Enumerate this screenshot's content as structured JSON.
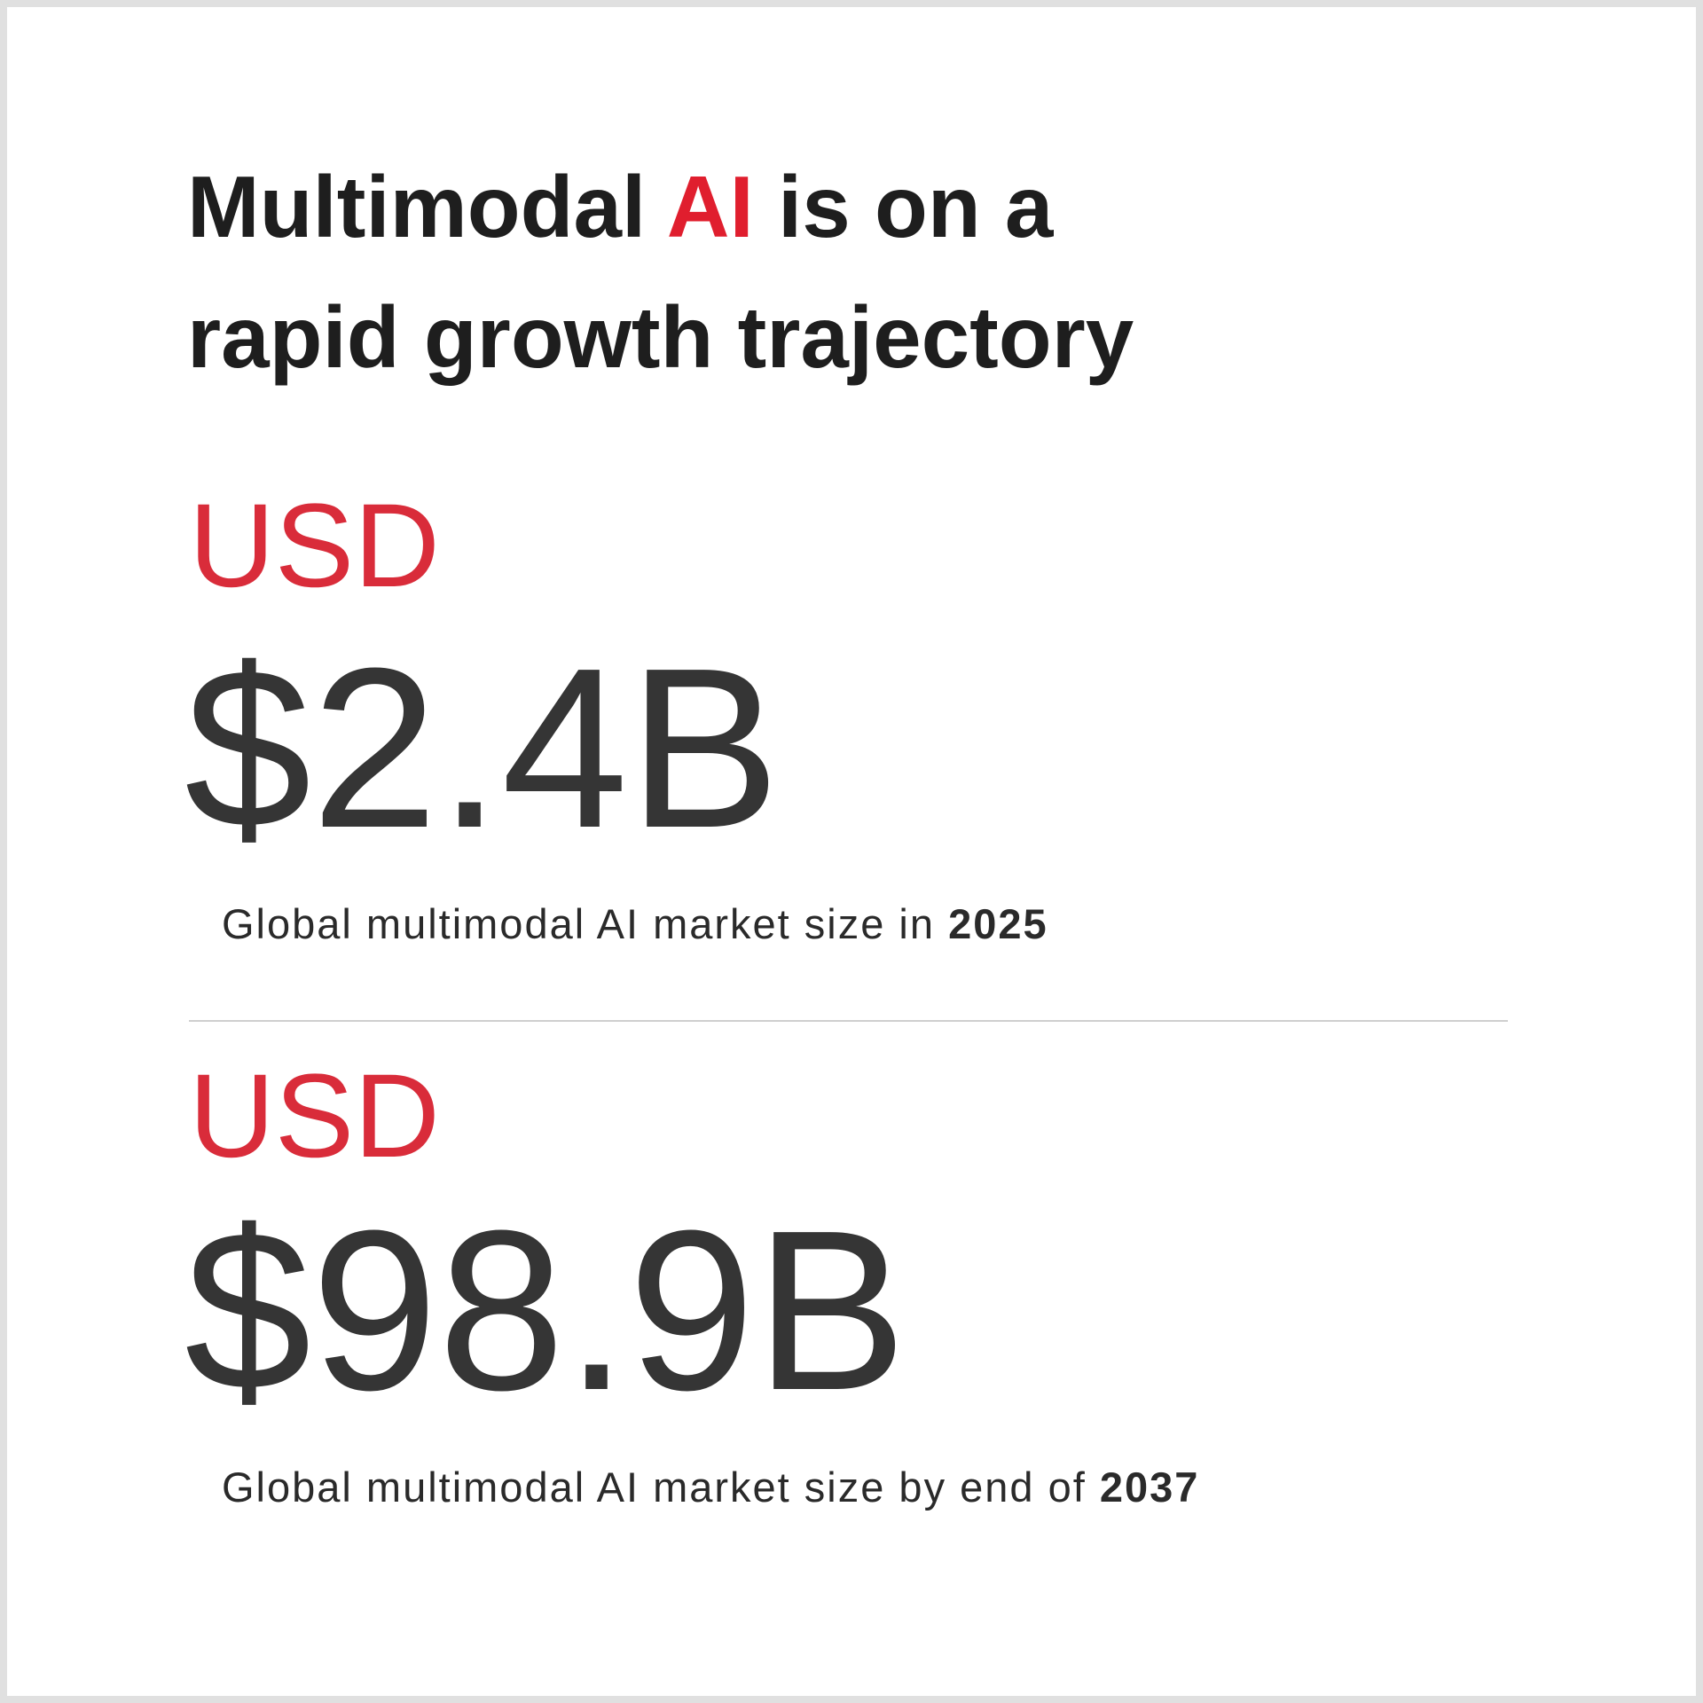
{
  "colors": {
    "accent": "#e01e2e",
    "text": "#1e1e1e",
    "figure": "#353535",
    "border": "#e0e0e0"
  },
  "title": {
    "line1_pre": "Multimodal ",
    "line1_accent": "AI",
    "line1_post": " is on a",
    "line2": "rapid growth trajectory"
  },
  "stats": [
    {
      "currency": "USD",
      "value": "$2.4B",
      "caption": "Global multimodal AI market size in ",
      "year": "2025"
    },
    {
      "currency": "USD",
      "value": "$98.9B",
      "caption": "Global multimodal AI market size by end of ",
      "year": "2037"
    }
  ]
}
